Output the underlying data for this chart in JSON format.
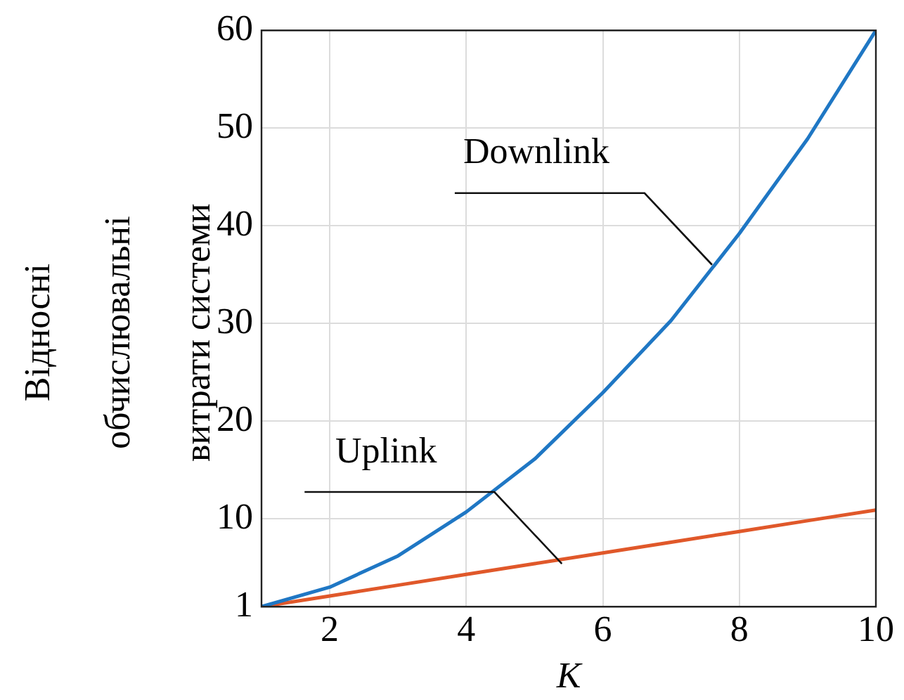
{
  "chart_data": {
    "type": "line",
    "ylabel": "Відносні\nобчислювальні\nвитрати системи",
    "xlabel": "K",
    "x": [
      1,
      2,
      3,
      4,
      5,
      6,
      7,
      8,
      9,
      10
    ],
    "series": [
      {
        "color": "#1f77c4",
        "values": [
          1,
          3,
          6.2,
          10.7,
          16.1,
          22.9,
          30.3,
          39.2,
          48.9,
          60
        ]
      },
      {
        "color": "#e0582a",
        "values": [
          1,
          2.1,
          3.2,
          4.3,
          5.4,
          6.5,
          7.6,
          8.7,
          9.8,
          10.9
        ]
      }
    ],
    "annotations": [
      {
        "text": "Downlink",
        "x": 7.6,
        "y": 36
      },
      {
        "text": "Uplink",
        "x": 5.4,
        "y": 5.4
      }
    ],
    "xlim": [
      1,
      10
    ],
    "xticks": [
      2,
      4,
      6,
      8,
      10
    ],
    "ylim": [
      1,
      60
    ],
    "yticks": [
      1,
      10,
      20,
      30,
      40,
      50,
      60
    ],
    "grid": true,
    "legend": false,
    "marker": "none",
    "line_style": "solid"
  }
}
